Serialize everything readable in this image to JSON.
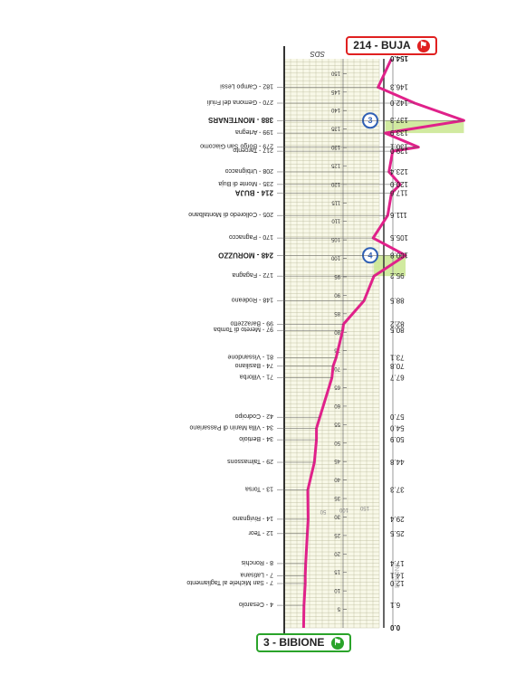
{
  "colors": {
    "profile": "#e0218a",
    "background": "#f8f8e8",
    "grid": "#b9b99a",
    "start": "#2aa32a",
    "finish": "#e02020",
    "climb_fill": "#c9e68f",
    "km_marker": "#2f5fb5"
  },
  "chart_data": {
    "type": "line",
    "title": "",
    "subtitle": "",
    "xlabel": "",
    "ylabel": "",
    "xlim": [
      0,
      154
    ],
    "ylim": [
      0,
      400
    ],
    "grid": true,
    "orientation": "rotated-180",
    "x": [
      0,
      6.1,
      12.0,
      14.1,
      17.4,
      25.5,
      29.4,
      37.3,
      44.8,
      50.9,
      54.0,
      57.0,
      67.7,
      70.8,
      73.1,
      80.5,
      82.2,
      88.5,
      95.2,
      100.8,
      105.5,
      111.6,
      117.6,
      120.0,
      123.4,
      129.0,
      130.1,
      133.9,
      137.3,
      142.0,
      146.3,
      154.0
    ],
    "y": [
      3,
      4,
      7,
      7,
      8,
      12,
      14,
      13,
      29,
      34,
      34,
      42,
      71,
      74,
      81,
      97,
      99,
      148,
      172,
      248,
      170,
      205,
      214,
      235,
      208,
      217,
      279,
      199,
      388,
      270,
      182,
      214
    ],
    "scale_ticks": [
      "5",
      "10",
      "15",
      "20",
      "25",
      "30",
      "35",
      "40",
      "45",
      "50",
      "55",
      "60",
      "65",
      "70",
      "75",
      "80",
      "85",
      "90",
      "95",
      "100",
      "105",
      "110",
      "115",
      "120",
      "125",
      "130",
      "135",
      "140",
      "145",
      "150"
    ],
    "km_labels": [
      "0.0",
      "6.1",
      "12.0",
      "14.1",
      "17.4",
      "25.5",
      "29.4",
      "37.3",
      "44.8",
      "50.9",
      "54.0",
      "57.0",
      "67.7",
      "70.8",
      "73.1",
      "80.5",
      "82.2",
      "88.5",
      "95.2",
      "100.8",
      "105.5",
      "111.6",
      "117.6",
      "120.0",
      "123.4",
      "129.0",
      "130.1",
      "133.9",
      "137.3",
      "142.0",
      "146.3",
      "154.0"
    ],
    "places": [
      "3 - BIBIONE",
      "4 - Cesarolo",
      "7 - San Michele al Tagliamento",
      "7 - Latisana",
      "8 - Ronchis",
      "12 - Teor",
      "14 - Rivignano",
      "13 - Torsa",
      "29 - Talmassons",
      "34 - Bertiolo",
      "34 - Villa Manin di Passariano",
      "42 - Codroipo",
      "71 - Villorba",
      "74 - Basiliano",
      "81 - Vissandone",
      "97 - Mereto di Tomba",
      "99 - Barazzetto",
      "148 - Rodeano",
      "172 - Fagagna",
      "248 - MORUZZO",
      "170 - Pagnacco",
      "205 - Colloredo di Montalbano",
      "214 - BUJA",
      "235 - Monte di Buja",
      "208 - Urbignacco",
      "217 - Tarcento",
      "279 - Borgo San Giacomo",
      "199 - Artegna",
      "388 - MONTENARS",
      "270 - Gemona del Friuli",
      "182 - Campo Lessi",
      "214 - BUJA"
    ],
    "bold_places": [
      "3 - BIBIONE",
      "248 - MORUZZO",
      "388 - MONTENARS",
      "214 - BUJA"
    ],
    "climbs": [
      {
        "label": "4",
        "start_km": 95.2,
        "end_km": 100.8,
        "min_alt": 172,
        "max_alt": 248
      },
      {
        "label": "3",
        "start_km": 133.9,
        "end_km": 137.3,
        "min_alt": 199,
        "max_alt": 388
      }
    ],
    "alt_tick_labels": [
      "50",
      "100",
      "150",
      "200",
      "250",
      "300",
      "350"
    ],
    "side_labels": [
      "BIBIONE",
      "CD"
    ],
    "header_label": "SDS"
  },
  "start_badge": {
    "text": "3 - BIBIONE"
  },
  "finish_badge": {
    "text": "214 - BUJA"
  }
}
